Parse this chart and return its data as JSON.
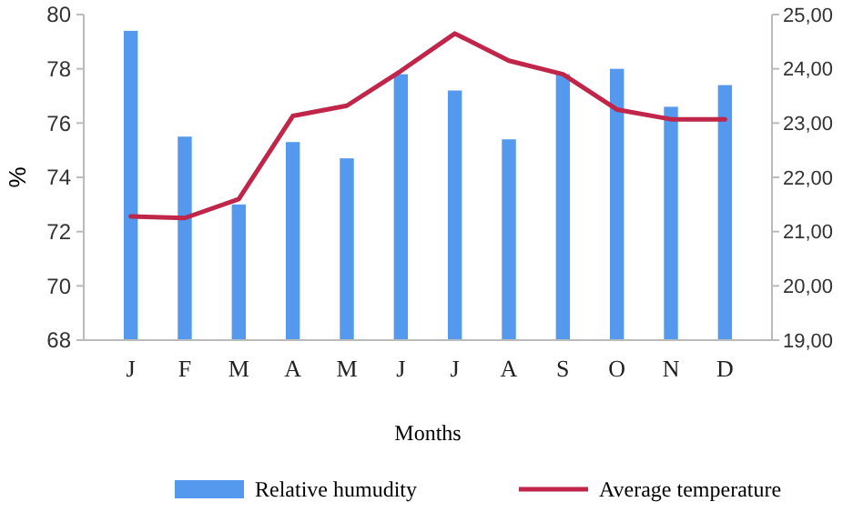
{
  "chart_data": {
    "type": "bar",
    "xlabel": "Months",
    "ylabel": "%",
    "categories": [
      "J",
      "F",
      "M",
      "A",
      "M",
      "J",
      "J",
      "A",
      "S",
      "O",
      "N",
      "D"
    ],
    "series": [
      {
        "name": "Relative humudity",
        "color": "#5599ee",
        "values": [
          79.4,
          75.5,
          73.0,
          75.3,
          74.7,
          77.8,
          77.2,
          75.4,
          77.8,
          78.0,
          76.6,
          77.4
        ]
      },
      {
        "name": "Average temperature",
        "type": "line",
        "axis": "y2",
        "color": "#c0254a",
        "values": [
          21.28,
          21.25,
          21.6,
          23.13,
          23.32,
          23.96,
          24.65,
          24.15,
          23.9,
          23.25,
          23.07,
          23.07
        ]
      }
    ],
    "ylim": [
      68,
      80
    ],
    "yticks": [
      68,
      70,
      72,
      74,
      76,
      78,
      80
    ],
    "y2lim": [
      19,
      25
    ],
    "y2ticks": [
      {
        "value": 19,
        "label": "19,00"
      },
      {
        "value": 20,
        "label": "20,00"
      },
      {
        "value": 21,
        "label": "21,00"
      },
      {
        "value": 22,
        "label": "22,00"
      },
      {
        "value": 23,
        "label": "23,00"
      },
      {
        "value": 24,
        "label": "24,00"
      },
      {
        "value": 25,
        "label": "25,00"
      }
    ],
    "grid": false,
    "legend": "bottom",
    "marker": "none",
    "line_style": "solid"
  }
}
